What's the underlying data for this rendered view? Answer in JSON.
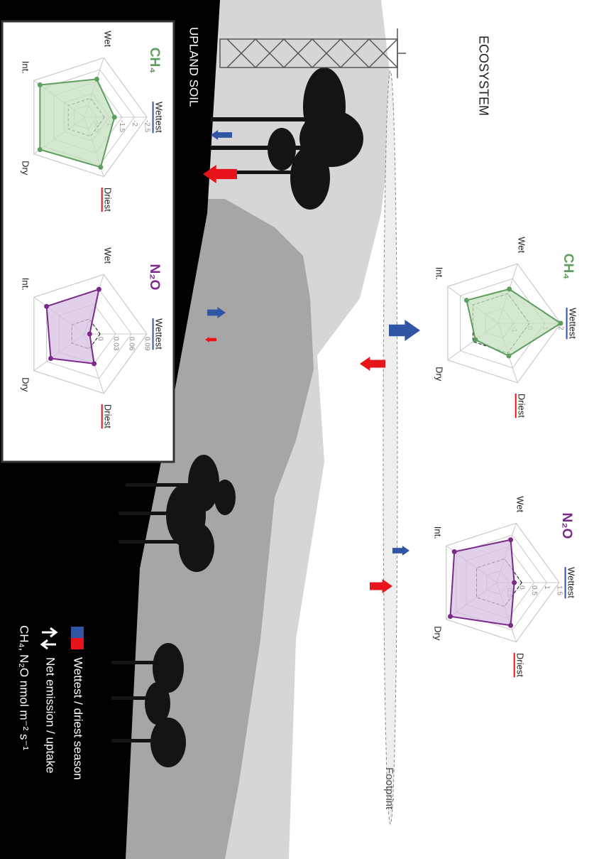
{
  "labels": {
    "ecosystem": "ECOSYSTEM",
    "upland_soil": "UPLAND SOIL",
    "footprint": "Footprint",
    "legend": [
      "Wettest / driest season",
      "Net emission / uptake",
      "CH₄, N₂O nmol m⁻² s⁻¹"
    ]
  },
  "chart_data": [
    {
      "type": "radar",
      "title": "CH₄",
      "color": "#5f9e5f",
      "fill": "#c5e0c0",
      "categories": [
        "Wettest",
        "Driest",
        "Dry",
        "Int.",
        "Wet"
      ],
      "values": [
        2,
        0.2,
        -0.2,
        0.5,
        0.3
      ],
      "rlim": [
        -2,
        2
      ],
      "rticks": [
        -1,
        0,
        1,
        2
      ],
      "reference": 0
    },
    {
      "type": "radar",
      "title": "N₂O",
      "color": "#7b2a8a",
      "fill": "#d7c0e2",
      "categories": [
        "Wettest",
        "Driest",
        "Dry",
        "Int.",
        "Wet"
      ],
      "values": [
        -0.3,
        0.8,
        1.3,
        1.1,
        0.8
      ],
      "rlim": [
        -1,
        1.5
      ],
      "rticks": [
        -0.5,
        0,
        0.5,
        1,
        1.5
      ],
      "reference": 0
    },
    {
      "type": "radar",
      "title": "CH₄",
      "color": "#5f9e5f",
      "fill": "#c5e0c0",
      "categories": [
        "Wettest",
        "Driest",
        "Dry",
        "Int.",
        "Wet"
      ],
      "values": [
        -1.2,
        -2.1,
        -2.2,
        -2.2,
        -1.6
      ],
      "rlim": [
        0,
        -2.5
      ],
      "rticks": [
        -0.5,
        -1,
        -1.5,
        -2,
        -2.5
      ],
      "reference": -0.8
    },
    {
      "type": "radar",
      "title": "N₂O",
      "color": "#7b2a8a",
      "fill": "#d7c0e2",
      "categories": [
        "Wettest",
        "Driest",
        "Dry",
        "Int.",
        "Wet"
      ],
      "values": [
        -0.02,
        0.03,
        0.05,
        0.06,
        0.06
      ],
      "rlim": [
        -0.03,
        0.09
      ],
      "rticks": [
        0,
        0.03,
        0.06,
        0.09
      ],
      "reference": 0
    }
  ]
}
